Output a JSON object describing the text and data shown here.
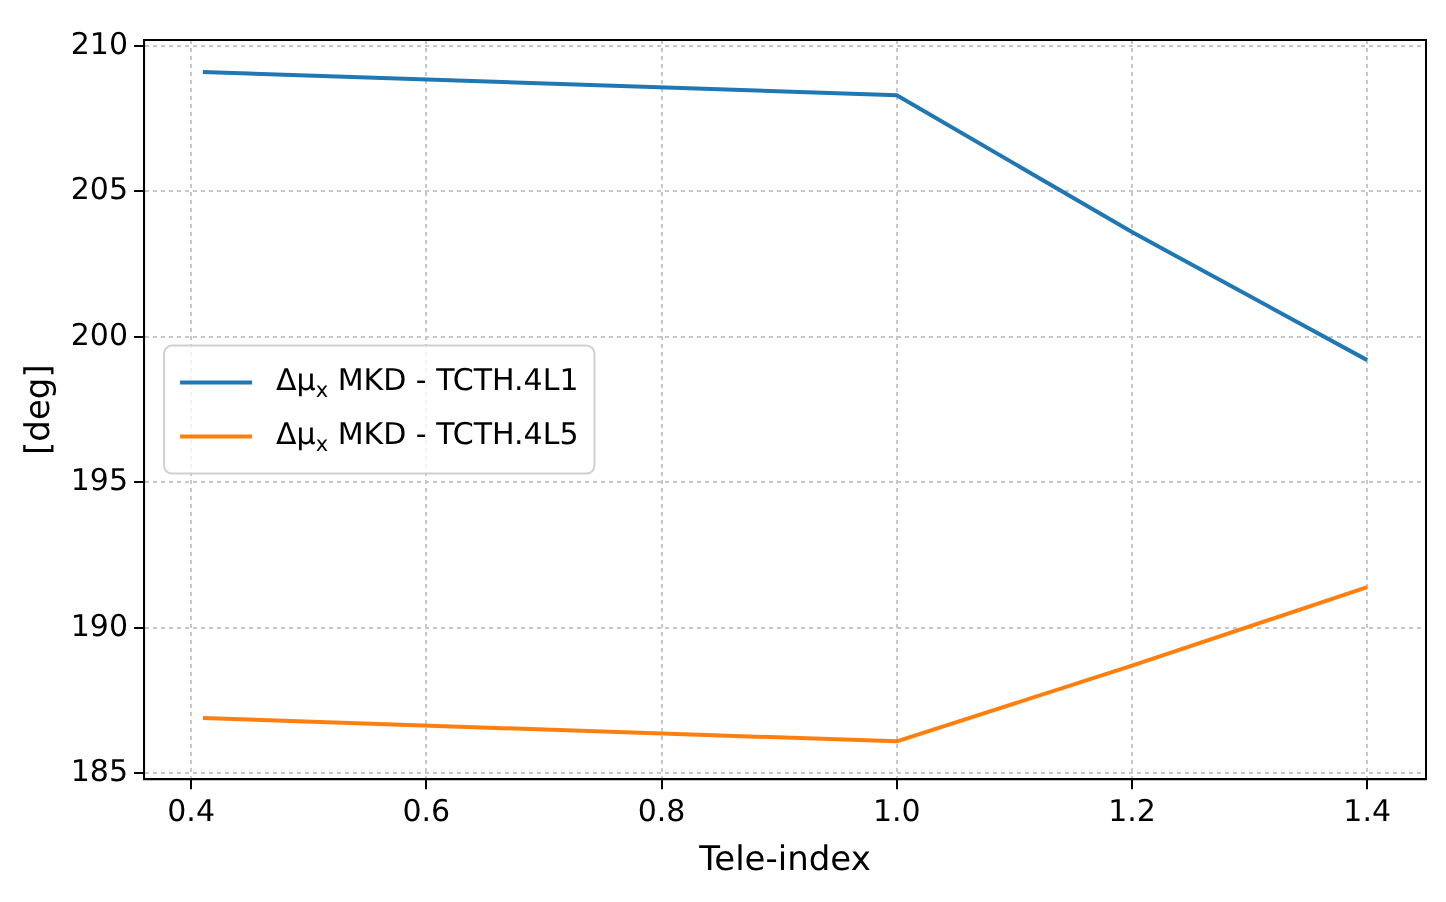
{
  "chart_data": {
    "type": "line",
    "xlabel": "Tele-index",
    "ylabel": "[deg]",
    "xlim": [
      0.36,
      1.45
    ],
    "xticks": [
      0.4,
      0.6,
      0.8,
      {
        "value": 1,
        "label": "1.0"
      },
      1.2,
      1.4
    ],
    "ylim": [
      184.8,
      210.2
    ],
    "yticks": [
      185,
      190,
      195,
      200,
      205,
      210
    ],
    "grid": true,
    "legend": "center left",
    "marker": "none",
    "line_style": "solid",
    "series": [
      {
        "name": "Δμ$_{x}$ MKD - TCTH.4L1",
        "color": "#1f77b4",
        "x": [
          0.41,
          1.0,
          1.2,
          1.4
        ],
        "values": [
          209.1,
          208.3,
          203.6,
          199.2
        ]
      },
      {
        "name": "Δμ$_{x}$ MKD - TCTH.4L5",
        "color": "#ff7f0e",
        "x": [
          0.41,
          1.0,
          1.2,
          1.4
        ],
        "values": [
          186.9,
          186.1,
          188.7,
          191.4
        ]
      }
    ]
  }
}
